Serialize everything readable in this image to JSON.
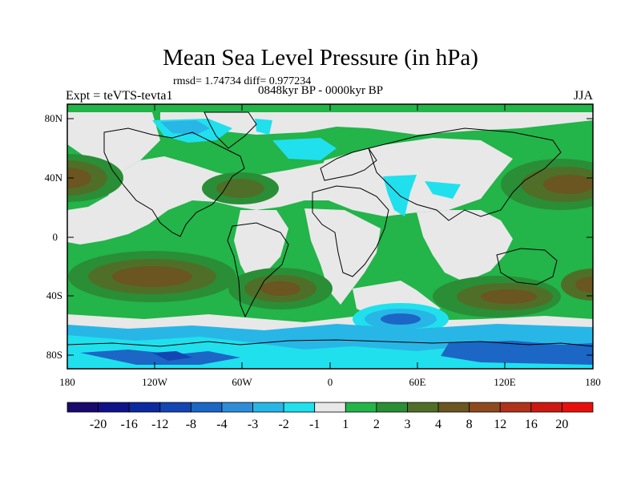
{
  "title": "Mean Sea Level Pressure (in hPa)",
  "stats": "rmsd= 1.74734 diff= 0.977234",
  "period": "0848kyr BP - 0000kyr BP",
  "expt": "Expt = teVTS-tevta1",
  "season": "JJA",
  "lat_ticks": [
    "80N",
    "40N",
    "0",
    "40S",
    "80S"
  ],
  "lon_ticks": [
    "180",
    "120W",
    "60W",
    "0",
    "60E",
    "120E",
    "180"
  ],
  "colorbar": {
    "labels": [
      "-20",
      "-16",
      "-12",
      "-8",
      "-4",
      "-3",
      "-2",
      "-1",
      "1",
      "2",
      "3",
      "4",
      "8",
      "12",
      "16",
      "20"
    ],
    "colors": [
      "#1a0a6e",
      "#10128a",
      "#0c2aa0",
      "#1345b3",
      "#1c66c6",
      "#2f8dd8",
      "#28b6e6",
      "#20e0ee",
      "#e8e8e8",
      "#23b44a",
      "#2a8e36",
      "#4f6f28",
      "#6b5520",
      "#8e4a1c",
      "#b0321a",
      "#cc1a12",
      "#e8100c"
    ]
  },
  "colors": {
    "neutral": "#e8e8e8",
    "ocean_positive": "#23b44a",
    "darkgreen": "#2a8e36",
    "olive": "#4f6f28",
    "brown": "#6b5520",
    "cyan": "#20e0ee",
    "lightblue": "#28b6e6",
    "blue": "#1c66c6"
  }
}
